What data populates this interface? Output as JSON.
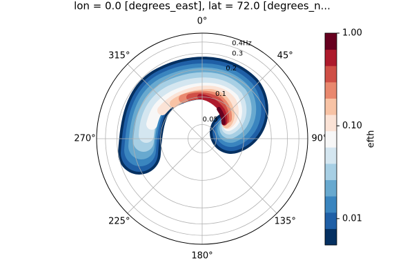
{
  "chart_data": {
    "type": "polar-contour",
    "title": "lon = 0.0 [degrees_east], lat = 72.0 [degrees_n...",
    "theta_direction": "clockwise",
    "theta_zero": "N",
    "thetaticks": [
      {
        "value": 0,
        "label": "0°"
      },
      {
        "value": 45,
        "label": "45°"
      },
      {
        "value": 90,
        "label": "90°"
      },
      {
        "value": 135,
        "label": "135°"
      },
      {
        "value": 180,
        "label": "180°"
      },
      {
        "value": 225,
        "label": "225°"
      },
      {
        "value": 270,
        "label": "270°"
      },
      {
        "value": 315,
        "label": "315°"
      }
    ],
    "rscale": "log",
    "rlim": [
      0.035,
      0.5
    ],
    "rticks": [
      0.05,
      0.1,
      0.2,
      0.3,
      {
        "value": 0.4,
        "label": "0.4Hz"
      }
    ],
    "grid": true,
    "colorbar": {
      "label": "efth",
      "scale": "log",
      "clim": [
        0.0052,
        1
      ],
      "ticks": [
        {
          "value": 0.01,
          "label": "0.01"
        },
        {
          "value": 0.1,
          "label": "0.10"
        },
        {
          "value": 1,
          "label": "1.00"
        }
      ],
      "colors": [
        "#053061",
        "#1f5fa6",
        "#3a85bf",
        "#68a9cf",
        "#a7cfe4",
        "#d4e6f0",
        "#f7f7f7",
        "#fbe3d6",
        "#f8c3a5",
        "#e9886e",
        "#cf4f46",
        "#ad1a2c",
        "#67001f"
      ]
    }
  }
}
